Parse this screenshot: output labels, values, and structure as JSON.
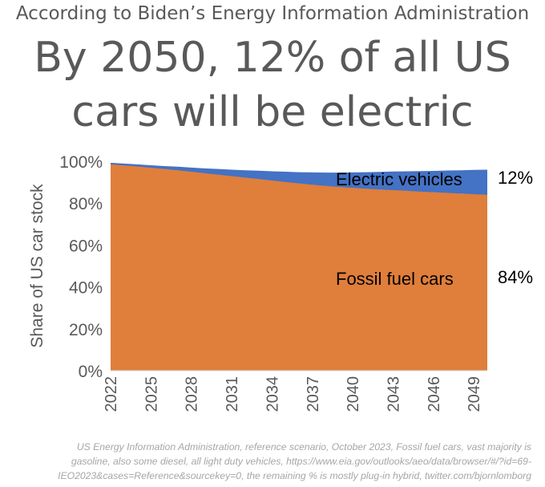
{
  "header": {
    "supertitle": "According to Biden’s Energy Information Administration",
    "title_line1": "By 2050, 12% of all US",
    "title_line2": "cars will be electric"
  },
  "source_note": {
    "line1": "US Energy Information Administration, reference scenario, October 2023, Fossil fuel cars, vast majority is",
    "line2": "gasoline, also some diesel, all light duty vehicles, https://www.eia.gov/outlooks/aeo/data/browser/#/?id=69-",
    "line3": "IEO2023&cases=Reference&sourcekey=0, the remaining % is mostly plug-in hybrid, twitter.com/bjornlomborg"
  },
  "colors": {
    "fossil": "#E07E3C",
    "electric": "#4472C4",
    "text": "#595959"
  },
  "chart_data": {
    "type": "area",
    "stacked": true,
    "ylabel": "Share of US car stock",
    "xlabel": "",
    "ylim": [
      0,
      100
    ],
    "y_ticks": [
      "0%",
      "20%",
      "40%",
      "60%",
      "80%",
      "100%"
    ],
    "x_ticks": [
      "2022",
      "2025",
      "2028",
      "2031",
      "2034",
      "2037",
      "2040",
      "2043",
      "2046",
      "2049"
    ],
    "x": [
      2022,
      2023,
      2024,
      2025,
      2026,
      2027,
      2028,
      2029,
      2030,
      2031,
      2032,
      2033,
      2034,
      2035,
      2036,
      2037,
      2038,
      2039,
      2040,
      2041,
      2042,
      2043,
      2044,
      2045,
      2046,
      2047,
      2048,
      2049,
      2050
    ],
    "series": [
      {
        "name": "Fossil fuel cars",
        "end_label": "84%",
        "values": [
          98.5,
          98,
          97.5,
          96.9,
          96.3,
          95.7,
          95,
          94.3,
          93.6,
          92.9,
          92.2,
          91.5,
          90.8,
          90.1,
          89.4,
          88.8,
          88.2,
          87.7,
          87.3,
          86.9,
          86.5,
          86.2,
          85.9,
          85.5,
          85.2,
          84.9,
          84.6,
          84.3,
          84
        ]
      },
      {
        "name": "Electric vehicles",
        "end_label": "12%",
        "values": [
          0.8,
          0.9,
          1,
          1.2,
          1.4,
          1.7,
          2,
          2.3,
          2.7,
          3.1,
          3.5,
          4,
          4.4,
          4.9,
          5.4,
          5.9,
          6.4,
          6.9,
          7.4,
          7.9,
          8.4,
          8.9,
          9.3,
          9.8,
          10.2,
          10.7,
          11.1,
          11.6,
          12
        ]
      }
    ]
  }
}
